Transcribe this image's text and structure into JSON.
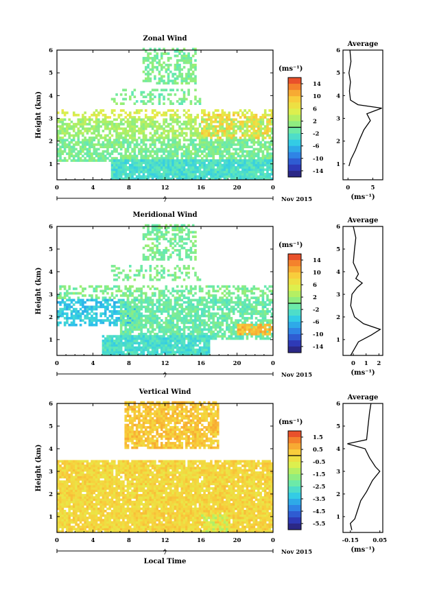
{
  "chart_data": [
    {
      "type": "heatmap",
      "title": "Zonal Wind",
      "ylabel": "Height (km)",
      "x_ticks": [
        "0",
        "4",
        "8",
        "12",
        "16",
        "20",
        "0"
      ],
      "y_ticks": [
        "1",
        "2",
        "3",
        "4",
        "5",
        "6"
      ],
      "date_marker": "7",
      "date_suffix": "Nov 2015",
      "xlim": [
        0,
        24
      ],
      "ylim": [
        0.3,
        6.0
      ],
      "colorbar": {
        "unit": "(ms⁻¹)",
        "ticks": [
          "14",
          "10",
          "6",
          "2",
          "-2",
          "-6",
          "-10",
          "-14"
        ],
        "range": [
          -16,
          16
        ]
      },
      "fields": [
        {
          "x": [
            9.5,
            15.5
          ],
          "y": [
            4.5,
            6.0
          ],
          "value": 0,
          "density": 0.5
        },
        {
          "x": [
            6,
            16
          ],
          "y": [
            3.6,
            4.2
          ],
          "value": 0,
          "density": 0.3
        },
        {
          "x": [
            0,
            24
          ],
          "y": [
            3.0,
            3.4
          ],
          "value": 5,
          "density": 0.4
        },
        {
          "x": [
            0,
            24
          ],
          "y": [
            2.1,
            3.0
          ],
          "value": 2,
          "density": 0.7
        },
        {
          "x": [
            0,
            24
          ],
          "y": [
            1.1,
            2.1
          ],
          "value": 0,
          "density": 0.75
        },
        {
          "x": [
            6,
            24
          ],
          "y": [
            0.3,
            1.1
          ],
          "value": -3,
          "density": 0.95
        },
        {
          "x": [
            16,
            24
          ],
          "y": [
            2.1,
            3.2
          ],
          "value": 8,
          "density": 0.35
        }
      ],
      "profile": {
        "title": "Average",
        "x_ticks": [
          "0",
          "5"
        ],
        "xlabel": "(ms⁻¹)",
        "xlim": [
          -1,
          7
        ],
        "ylim": [
          0.3,
          6.0
        ],
        "points": [
          [
            0.2,
            0.9
          ],
          [
            0.6,
            1.2
          ],
          [
            1.5,
            1.6
          ],
          [
            2.4,
            2.1
          ],
          [
            3.2,
            2.5
          ],
          [
            4.5,
            2.9
          ],
          [
            3.8,
            3.2
          ],
          [
            5.0,
            3.3
          ],
          [
            6.8,
            3.45
          ],
          [
            2.0,
            3.6
          ],
          [
            0.5,
            3.8
          ],
          [
            0.3,
            4.2
          ],
          [
            0.5,
            4.6
          ],
          [
            0.2,
            5.0
          ],
          [
            0.6,
            5.5
          ],
          [
            0.4,
            6.0
          ]
        ]
      }
    },
    {
      "type": "heatmap",
      "title": "Meridional Wind",
      "ylabel": "Height (km)",
      "x_ticks": [
        "0",
        "4",
        "8",
        "12",
        "16",
        "20",
        "0"
      ],
      "y_ticks": [
        "1",
        "2",
        "3",
        "4",
        "5",
        "6"
      ],
      "date_marker": "7",
      "date_suffix": "Nov 2015",
      "xlim": [
        0,
        24
      ],
      "ylim": [
        0.3,
        6.0
      ],
      "colorbar": {
        "unit": "(ms⁻¹)",
        "ticks": [
          "14",
          "10",
          "6",
          "2",
          "-2",
          "-6",
          "-10",
          "-14"
        ],
        "range": [
          -16,
          16
        ]
      },
      "fields": [
        {
          "x": [
            9.5,
            15.5
          ],
          "y": [
            4.5,
            6.0
          ],
          "value": 0,
          "density": 0.5
        },
        {
          "x": [
            6,
            16
          ],
          "y": [
            3.6,
            4.2
          ],
          "value": 0,
          "density": 0.3
        },
        {
          "x": [
            0,
            24
          ],
          "y": [
            2.8,
            3.4
          ],
          "value": 0,
          "density": 0.5
        },
        {
          "x": [
            0,
            9
          ],
          "y": [
            1.6,
            2.8
          ],
          "value": -5,
          "density": 0.6
        },
        {
          "x": [
            7,
            24
          ],
          "y": [
            1.0,
            2.8
          ],
          "value": -1,
          "density": 0.75
        },
        {
          "x": [
            5,
            17
          ],
          "y": [
            0.3,
            1.2
          ],
          "value": -3,
          "density": 0.9
        },
        {
          "x": [
            20,
            24
          ],
          "y": [
            1.2,
            1.7
          ],
          "value": 10,
          "density": 0.8
        }
      ],
      "profile": {
        "title": "Average",
        "x_ticks": [
          "0",
          "1",
          "2"
        ],
        "xlabel": "(ms⁻¹)",
        "xlim": [
          -0.8,
          2.3
        ],
        "ylim": [
          0.3,
          6.0
        ],
        "points": [
          [
            -0.2,
            0.3
          ],
          [
            0.4,
            0.9
          ],
          [
            1.4,
            1.2
          ],
          [
            2.1,
            1.45
          ],
          [
            0.8,
            1.7
          ],
          [
            0.1,
            2.0
          ],
          [
            -0.2,
            2.5
          ],
          [
            -0.1,
            3.0
          ],
          [
            0.3,
            3.3
          ],
          [
            0.7,
            3.5
          ],
          [
            0.2,
            3.7
          ],
          [
            0.4,
            3.9
          ],
          [
            0.0,
            4.4
          ],
          [
            0.1,
            5.0
          ],
          [
            0.2,
            5.5
          ],
          [
            0.0,
            6.0
          ]
        ]
      }
    },
    {
      "type": "heatmap",
      "title": "Vertical Wind",
      "ylabel": "Height (km)",
      "xlabel": "Local Time",
      "x_ticks": [
        "0",
        "4",
        "8",
        "12",
        "16",
        "20",
        "0"
      ],
      "y_ticks": [
        "1",
        "2",
        "3",
        "4",
        "5",
        "6"
      ],
      "date_marker": "7",
      "date_suffix": "Nov 2015",
      "xlim": [
        0,
        24
      ],
      "ylim": [
        0.3,
        6.0
      ],
      "colorbar": {
        "unit": "(ms⁻¹)",
        "ticks": [
          "1.5",
          "0.5",
          "-0.5",
          "-1.5",
          "-2.5",
          "-3.5",
          "-4.5",
          "-5.5"
        ],
        "range": [
          -6,
          2
        ]
      },
      "fields": [
        {
          "x": [
            7.5,
            18
          ],
          "y": [
            4.0,
            6.0
          ],
          "value": 0.3,
          "density": 0.8
        },
        {
          "x": [
            0,
            24
          ],
          "y": [
            0.3,
            3.5
          ],
          "value": 0.0,
          "density": 0.92
        },
        {
          "x": [
            16,
            19
          ],
          "y": [
            0.3,
            1.0
          ],
          "value": -1.0,
          "density": 0.5
        }
      ],
      "profile": {
        "title": "Average",
        "x_ticks": [
          "-0.15",
          "0.05"
        ],
        "xlabel": "(ms⁻¹)",
        "xlim": [
          -0.2,
          0.07
        ],
        "ylim": [
          0.3,
          6.0
        ],
        "points": [
          [
            -0.14,
            0.4
          ],
          [
            -0.15,
            0.7
          ],
          [
            -0.12,
            0.9
          ],
          [
            -0.1,
            1.3
          ],
          [
            -0.08,
            1.7
          ],
          [
            -0.04,
            2.1
          ],
          [
            0.0,
            2.6
          ],
          [
            0.05,
            3.0
          ],
          [
            0.02,
            3.2
          ],
          [
            -0.02,
            3.6
          ],
          [
            -0.05,
            4.0
          ],
          [
            -0.17,
            4.22
          ],
          [
            -0.04,
            4.4
          ],
          [
            -0.03,
            5.0
          ],
          [
            -0.02,
            5.6
          ],
          [
            -0.01,
            6.0
          ]
        ]
      }
    }
  ]
}
